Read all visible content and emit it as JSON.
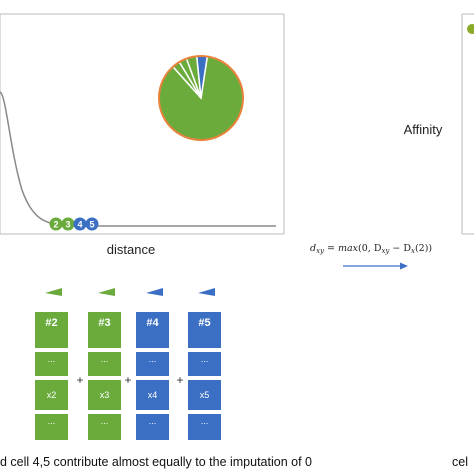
{
  "plot": {
    "xlabel": "distance",
    "dots": [
      "2",
      "3",
      "4",
      "5"
    ],
    "pie_slices": [
      0.86,
      0.03,
      0.03,
      0.04,
      0.04
    ]
  },
  "right_panel": {
    "label": "Affinity"
  },
  "formula": "d_xy = max(0, D_xy − D_x(2))",
  "formula_parts": {
    "lhs": "d",
    "lhs_sub": "xy",
    "eq": " = ",
    "fn": "max",
    "open": "(0, D",
    "d_sub": "xy",
    "minus": " − D",
    "dx_sub": "x",
    "close": "(2))"
  },
  "columns": [
    {
      "label": "#2",
      "value": "x2",
      "dots": "...",
      "color": "#6aab3c"
    },
    {
      "label": "#3",
      "value": "x3",
      "dots": "...",
      "color": "#6aab3c"
    },
    {
      "label": "#4",
      "value": "x4",
      "dots": "...",
      "color": "#3b6fc4"
    },
    {
      "label": "#5",
      "value": "x5",
      "dots": "...",
      "color": "#3b6fc4"
    }
  ],
  "operators": [
    "+",
    "+",
    "+"
  ],
  "caption": "d cell 4,5 contribute almost equally to the imputation of 0",
  "caption_right": "cel",
  "colors": {
    "green": "#6aab3c",
    "blue": "#3b6fc4",
    "orange": "#e8823a",
    "axis": "#555555",
    "curve": "#888888"
  }
}
